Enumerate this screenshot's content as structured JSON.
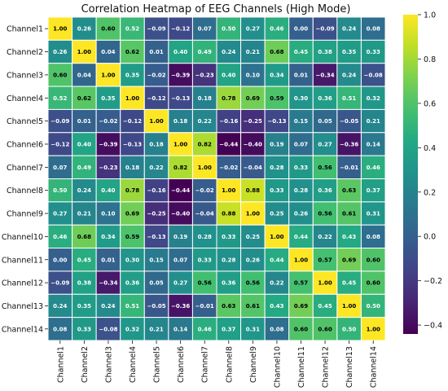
{
  "chart_data": {
    "type": "heatmap",
    "title": "Correlation Heatmap of EEG Channels (High Mode)",
    "row_labels": [
      "Channel1",
      "Channel2",
      "Channel3",
      "Channel4",
      "Channel5",
      "Channel6",
      "Channel7",
      "Channel8",
      "Channel9",
      "Channel10",
      "Channel11",
      "Channel12",
      "Channel13",
      "Channel14"
    ],
    "col_labels": [
      "Channel1",
      "Channel2",
      "Channel3",
      "Channel4",
      "Channel5",
      "Channel6",
      "Channel7",
      "Channel8",
      "Channel9",
      "Channel10",
      "Channel11",
      "Channel12",
      "Channel13",
      "Channel14"
    ],
    "values": [
      [
        1.0,
        0.26,
        0.6,
        0.52,
        -0.09,
        -0.12,
        0.07,
        0.5,
        0.27,
        0.46,
        0.0,
        -0.09,
        0.24,
        0.08
      ],
      [
        0.26,
        1.0,
        0.04,
        0.62,
        0.01,
        0.4,
        0.49,
        0.24,
        0.21,
        0.68,
        0.45,
        0.38,
        0.35,
        0.33
      ],
      [
        0.6,
        0.04,
        1.0,
        0.35,
        -0.02,
        -0.39,
        -0.23,
        0.4,
        0.1,
        0.34,
        0.01,
        -0.34,
        0.24,
        -0.08
      ],
      [
        0.52,
        0.62,
        0.35,
        1.0,
        -0.12,
        -0.13,
        0.18,
        0.78,
        0.69,
        0.59,
        0.3,
        0.36,
        0.51,
        0.32
      ],
      [
        -0.09,
        0.01,
        -0.02,
        -0.12,
        1.0,
        0.18,
        0.22,
        -0.16,
        -0.25,
        -0.13,
        0.15,
        0.05,
        -0.05,
        0.21
      ],
      [
        -0.12,
        0.4,
        -0.39,
        -0.13,
        0.18,
        1.0,
        0.82,
        -0.44,
        -0.4,
        0.19,
        0.07,
        0.27,
        -0.36,
        0.14
      ],
      [
        0.07,
        0.49,
        -0.23,
        0.18,
        0.22,
        0.82,
        1.0,
        -0.02,
        -0.04,
        0.28,
        0.33,
        0.56,
        -0.01,
        0.46
      ],
      [
        0.5,
        0.24,
        0.4,
        0.78,
        -0.16,
        -0.44,
        -0.02,
        1.0,
        0.88,
        0.33,
        0.28,
        0.36,
        0.63,
        0.37
      ],
      [
        0.27,
        0.21,
        0.1,
        0.69,
        -0.25,
        -0.4,
        -0.04,
        0.88,
        1.0,
        0.25,
        0.26,
        0.56,
        0.61,
        0.31
      ],
      [
        0.46,
        0.68,
        0.34,
        0.59,
        -0.13,
        0.19,
        0.28,
        0.33,
        0.25,
        1.0,
        0.44,
        0.22,
        0.43,
        0.08
      ],
      [
        0.0,
        0.45,
        0.01,
        0.3,
        0.15,
        0.07,
        0.33,
        0.28,
        0.26,
        0.44,
        1.0,
        0.57,
        0.69,
        0.6
      ],
      [
        -0.09,
        0.38,
        -0.34,
        0.36,
        0.05,
        0.27,
        0.56,
        0.36,
        0.56,
        0.22,
        0.57,
        1.0,
        0.45,
        0.6
      ],
      [
        0.24,
        0.35,
        0.24,
        0.51,
        -0.05,
        -0.36,
        -0.01,
        0.63,
        0.61,
        0.43,
        0.69,
        0.45,
        1.0,
        0.5
      ],
      [
        0.08,
        0.33,
        -0.08,
        0.32,
        0.21,
        0.14,
        0.46,
        0.37,
        0.31,
        0.08,
        0.6,
        0.6,
        0.5,
        1.0
      ]
    ],
    "value_format": "2 decimals",
    "colormap": "viridis",
    "vmin": -0.44,
    "vmax": 1.0,
    "colorbar_ticks": [
      1.0,
      0.8,
      0.6,
      0.4,
      0.2,
      0.0,
      -0.2,
      -0.4
    ],
    "colorbar_tick_labels": [
      "1.0",
      "0.8",
      "0.6",
      "0.4",
      "0.2",
      "0.0",
      "−0.2",
      "−0.4"
    ],
    "colors": {
      "grid_line": "#ffffff",
      "label_light": "#ffffff",
      "label_dark": "#000000"
    }
  }
}
